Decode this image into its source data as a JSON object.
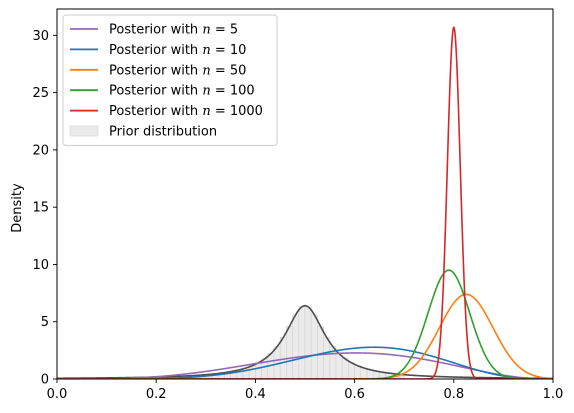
{
  "chart_data": {
    "type": "line",
    "xlabel": "",
    "ylabel": "Density",
    "xlim": [
      0,
      1
    ],
    "ylim": [
      0,
      32.3
    ],
    "xticks": [
      0.0,
      0.2,
      0.4,
      0.6,
      0.8,
      1.0
    ],
    "xtick_labels": [
      "0.0",
      "0.2",
      "0.4",
      "0.6",
      "0.8",
      "1.0"
    ],
    "yticks": [
      0,
      5,
      10,
      15,
      20,
      25,
      30
    ],
    "ytick_labels": [
      "0",
      "5",
      "10",
      "15",
      "20",
      "25",
      "30"
    ],
    "grid": false,
    "legend_position": "top-left",
    "series": [
      {
        "name": "Posterior with n = 5",
        "name_prefix": "Posterior with ",
        "name_var": "n",
        "name_eq": " = ",
        "name_val": "5",
        "color": "#9467bd",
        "dist": "beta",
        "alpha": 4.8,
        "beta": 3.5
      },
      {
        "name": "Posterior with n = 10",
        "name_prefix": "Posterior with ",
        "name_var": "n",
        "name_eq": " = ",
        "name_val": "10",
        "color": "#1f77b4",
        "dist": "beta",
        "alpha": 7.2,
        "beta": 4.5
      },
      {
        "name": "Posterior with n = 50",
        "name_prefix": "Posterior with ",
        "name_var": "n",
        "name_eq": " = ",
        "name_val": "50",
        "color": "#ff7f0e",
        "dist": "normal",
        "mean": 0.825,
        "sd": 0.054
      },
      {
        "name": "Posterior with n = 100",
        "name_prefix": "Posterior with ",
        "name_var": "n",
        "name_eq": " = ",
        "name_val": "100",
        "color": "#2ca02c",
        "dist": "normal",
        "mean": 0.79,
        "sd": 0.042
      },
      {
        "name": "Posterior with n = 1000",
        "name_prefix": "Posterior with ",
        "name_var": "n",
        "name_eq": " = ",
        "name_val": "1000",
        "color": "#d62728",
        "dist": "normal",
        "mean": 0.8,
        "sd": 0.013
      }
    ],
    "prior": {
      "name": "Prior distribution",
      "line_color": "#4d4d4d",
      "fill_color": "#ebebeb",
      "dist": "cauchy",
      "location": 0.5,
      "scale": 0.05,
      "peak": 6.4,
      "hist_start": 0.2,
      "hist_end": 0.7,
      "hist_bin_width": 0.0125
    }
  }
}
